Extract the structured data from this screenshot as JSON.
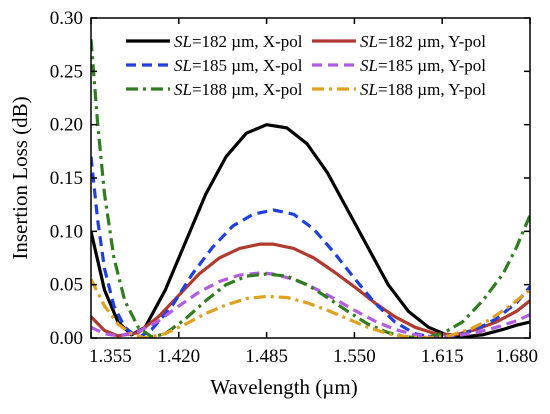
{
  "chart_data": {
    "type": "line",
    "xlabel": "Wavelength (µm)",
    "ylabel": "Insertion Loss (dB)",
    "xlim": [
      1.355,
      1.68
    ],
    "ylim": [
      0,
      0.3
    ],
    "xticks": [
      "1.355",
      "1.420",
      "1.485",
      "1.550",
      "1.615",
      "1.680"
    ],
    "yticks": [
      "0.00",
      "0.05",
      "0.10",
      "0.15",
      "0.20",
      "0.25",
      "0.30"
    ],
    "legend_position": "top",
    "legend_columns": 2,
    "series": [
      {
        "name_prefix": "SL",
        "name_rest": "=182 µm, X-pol",
        "color": "#000000",
        "dash": "solid",
        "points": [
          [
            1.355,
            0.1
          ],
          [
            1.365,
            0.045
          ],
          [
            1.375,
            0.015
          ],
          [
            1.385,
            0.003
          ],
          [
            1.395,
            0.01
          ],
          [
            1.41,
            0.045
          ],
          [
            1.425,
            0.09
          ],
          [
            1.44,
            0.135
          ],
          [
            1.455,
            0.17
          ],
          [
            1.47,
            0.192
          ],
          [
            1.485,
            0.2
          ],
          [
            1.5,
            0.197
          ],
          [
            1.515,
            0.182
          ],
          [
            1.53,
            0.155
          ],
          [
            1.545,
            0.12
          ],
          [
            1.56,
            0.085
          ],
          [
            1.575,
            0.05
          ],
          [
            1.59,
            0.025
          ],
          [
            1.605,
            0.01
          ],
          [
            1.62,
            0.002
          ],
          [
            1.63,
            0.001
          ],
          [
            1.645,
            0.003
          ],
          [
            1.66,
            0.008
          ],
          [
            1.67,
            0.012
          ],
          [
            1.68,
            0.015
          ]
        ]
      },
      {
        "name_prefix": "SL",
        "name_rest": "=182 µm, Y-pol",
        "color": "#b03a2e",
        "dash": "solid",
        "points": [
          [
            1.355,
            0.02
          ],
          [
            1.365,
            0.007
          ],
          [
            1.375,
            0.002
          ],
          [
            1.39,
            0.005
          ],
          [
            1.405,
            0.02
          ],
          [
            1.42,
            0.04
          ],
          [
            1.435,
            0.06
          ],
          [
            1.45,
            0.075
          ],
          [
            1.465,
            0.084
          ],
          [
            1.48,
            0.088
          ],
          [
            1.49,
            0.088
          ],
          [
            1.505,
            0.084
          ],
          [
            1.52,
            0.075
          ],
          [
            1.535,
            0.062
          ],
          [
            1.55,
            0.048
          ],
          [
            1.565,
            0.033
          ],
          [
            1.58,
            0.02
          ],
          [
            1.595,
            0.01
          ],
          [
            1.61,
            0.004
          ],
          [
            1.625,
            0.003
          ],
          [
            1.64,
            0.008
          ],
          [
            1.655,
            0.015
          ],
          [
            1.67,
            0.025
          ],
          [
            1.68,
            0.035
          ]
        ]
      },
      {
        "name_prefix": "SL",
        "name_rest": "=185 µm, X-pol",
        "color": "#1f3fe0",
        "dash": "dash",
        "points": [
          [
            1.355,
            0.17
          ],
          [
            1.36,
            0.11
          ],
          [
            1.365,
            0.065
          ],
          [
            1.372,
            0.03
          ],
          [
            1.38,
            0.01
          ],
          [
            1.39,
            0.0
          ],
          [
            1.4,
            0.008
          ],
          [
            1.415,
            0.03
          ],
          [
            1.43,
            0.06
          ],
          [
            1.445,
            0.085
          ],
          [
            1.46,
            0.105
          ],
          [
            1.475,
            0.116
          ],
          [
            1.49,
            0.12
          ],
          [
            1.505,
            0.116
          ],
          [
            1.52,
            0.102
          ],
          [
            1.535,
            0.08
          ],
          [
            1.55,
            0.056
          ],
          [
            1.565,
            0.033
          ],
          [
            1.58,
            0.015
          ],
          [
            1.595,
            0.004
          ],
          [
            1.61,
            0.0
          ],
          [
            1.625,
            0.002
          ],
          [
            1.64,
            0.008
          ],
          [
            1.655,
            0.018
          ],
          [
            1.67,
            0.033
          ],
          [
            1.68,
            0.048
          ]
        ]
      },
      {
        "name_prefix": "SL",
        "name_rest": "=185 µm, Y-pol",
        "color": "#b25ce6",
        "dash": "dash",
        "points": [
          [
            1.355,
            0.01
          ],
          [
            1.365,
            0.004
          ],
          [
            1.375,
            0.002
          ],
          [
            1.39,
            0.006
          ],
          [
            1.405,
            0.016
          ],
          [
            1.42,
            0.03
          ],
          [
            1.435,
            0.043
          ],
          [
            1.45,
            0.053
          ],
          [
            1.465,
            0.059
          ],
          [
            1.48,
            0.061
          ],
          [
            1.49,
            0.06
          ],
          [
            1.505,
            0.055
          ],
          [
            1.52,
            0.047
          ],
          [
            1.535,
            0.037
          ],
          [
            1.55,
            0.026
          ],
          [
            1.565,
            0.016
          ],
          [
            1.58,
            0.008
          ],
          [
            1.595,
            0.003
          ],
          [
            1.61,
            0.001
          ],
          [
            1.625,
            0.002
          ],
          [
            1.64,
            0.005
          ],
          [
            1.655,
            0.01
          ],
          [
            1.67,
            0.016
          ],
          [
            1.68,
            0.022
          ]
        ]
      },
      {
        "name_prefix": "SL",
        "name_rest": "=188 µm, X-pol",
        "color": "#2e7d1f",
        "dash": "dashdot",
        "points": [
          [
            1.355,
            0.28
          ],
          [
            1.36,
            0.2
          ],
          [
            1.365,
            0.135
          ],
          [
            1.372,
            0.075
          ],
          [
            1.38,
            0.035
          ],
          [
            1.39,
            0.01
          ],
          [
            1.4,
            0.001
          ],
          [
            1.41,
            0.004
          ],
          [
            1.425,
            0.018
          ],
          [
            1.44,
            0.035
          ],
          [
            1.455,
            0.05
          ],
          [
            1.47,
            0.058
          ],
          [
            1.485,
            0.06
          ],
          [
            1.5,
            0.058
          ],
          [
            1.515,
            0.05
          ],
          [
            1.53,
            0.038
          ],
          [
            1.545,
            0.025
          ],
          [
            1.56,
            0.013
          ],
          [
            1.575,
            0.005
          ],
          [
            1.59,
            0.001
          ],
          [
            1.6,
            0.0
          ],
          [
            1.615,
            0.004
          ],
          [
            1.63,
            0.015
          ],
          [
            1.645,
            0.035
          ],
          [
            1.66,
            0.06
          ],
          [
            1.67,
            0.085
          ],
          [
            1.68,
            0.115
          ]
        ]
      },
      {
        "name_prefix": "SL",
        "name_rest": "=188 µm, Y-pol",
        "color": "#e0a020",
        "dash": "dashdot",
        "points": [
          [
            1.355,
            0.055
          ],
          [
            1.365,
            0.03
          ],
          [
            1.375,
            0.013
          ],
          [
            1.385,
            0.004
          ],
          [
            1.395,
            0.0
          ],
          [
            1.41,
            0.004
          ],
          [
            1.425,
            0.013
          ],
          [
            1.44,
            0.023
          ],
          [
            1.455,
            0.031
          ],
          [
            1.47,
            0.037
          ],
          [
            1.485,
            0.039
          ],
          [
            1.5,
            0.038
          ],
          [
            1.515,
            0.033
          ],
          [
            1.53,
            0.026
          ],
          [
            1.545,
            0.018
          ],
          [
            1.56,
            0.01
          ],
          [
            1.575,
            0.004
          ],
          [
            1.59,
            0.001
          ],
          [
            1.605,
            0.0
          ],
          [
            1.62,
            0.002
          ],
          [
            1.635,
            0.008
          ],
          [
            1.65,
            0.017
          ],
          [
            1.665,
            0.03
          ],
          [
            1.68,
            0.045
          ]
        ]
      }
    ]
  }
}
